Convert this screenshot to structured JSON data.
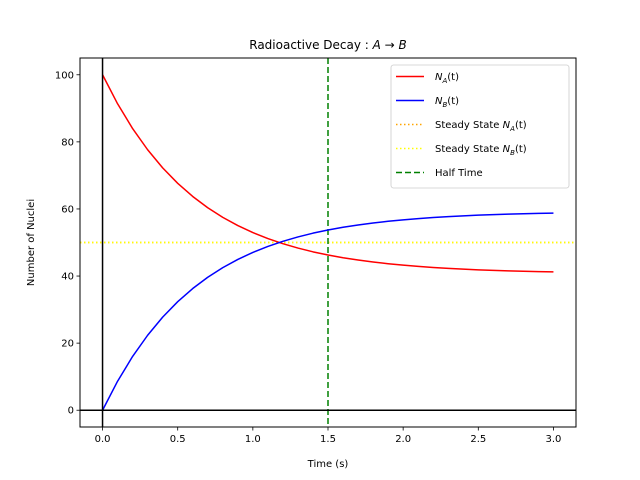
{
  "chart_data": {
    "type": "line",
    "title": "Radioactive Decay : A → B",
    "title_parts": {
      "prefix": "Radioactive Decay : ",
      "from": "A",
      "arrow": "→",
      "to": "B"
    },
    "xlabel": "Time (s)",
    "ylabel": "Number of Nuclei",
    "xlim": [
      -0.15,
      3.15
    ],
    "ylim": [
      -5,
      105
    ],
    "xticks": [
      0.0,
      0.5,
      1.0,
      1.5,
      2.0,
      2.5,
      3.0
    ],
    "xtick_labels": [
      "0.0",
      "0.5",
      "1.0",
      "1.5",
      "2.0",
      "2.5",
      "3.0"
    ],
    "yticks": [
      0,
      20,
      40,
      60,
      80,
      100
    ],
    "ytick_labels": [
      "0",
      "20",
      "40",
      "60",
      "80",
      "100"
    ],
    "grid": false,
    "legend_position": "top-right",
    "x": [
      0.0,
      0.1,
      0.2,
      0.3,
      0.4,
      0.5,
      0.6,
      0.7,
      0.8,
      0.9,
      1.0,
      1.1,
      1.2,
      1.3,
      1.4,
      1.5,
      1.6,
      1.7,
      1.8,
      1.9,
      2.0,
      2.1,
      2.2,
      2.3,
      2.4,
      2.5,
      2.6,
      2.7,
      2.8,
      2.9,
      3.0
    ],
    "series": [
      {
        "name": "N_A(t)",
        "legend": {
          "base": "N",
          "sub": "A",
          "suffix": "(t)"
        },
        "color": "#ff0000",
        "style": "solid",
        "values": [
          100.0,
          91.35,
          83.96,
          77.65,
          72.25,
          67.65,
          63.72,
          60.36,
          57.49,
          55.04,
          52.95,
          51.17,
          49.64,
          48.34,
          47.22,
          46.27,
          45.46,
          44.77,
          44.18,
          43.67,
          43.24,
          42.87,
          42.55,
          42.28,
          42.05,
          41.85,
          41.68,
          41.54,
          41.42,
          41.32,
          41.23
        ]
      },
      {
        "name": "N_B(t)",
        "legend": {
          "base": "N",
          "sub": "B",
          "suffix": "(t)"
        },
        "color": "#0000ff",
        "style": "solid",
        "values": [
          0.0,
          8.65,
          16.04,
          22.35,
          27.75,
          32.35,
          36.28,
          39.64,
          42.51,
          44.96,
          47.05,
          48.83,
          50.36,
          51.66,
          52.78,
          53.73,
          54.54,
          55.23,
          55.82,
          56.33,
          56.76,
          57.13,
          57.45,
          57.72,
          57.95,
          58.15,
          58.32,
          58.46,
          58.58,
          58.68,
          58.77
        ]
      }
    ],
    "reference_lines": [
      {
        "name": "Steady State N_A(t)",
        "legend": {
          "prefix": "Steady State ",
          "base": "N",
          "sub": "A",
          "suffix": "(t)"
        },
        "orientation": "horizontal",
        "value": 50,
        "color": "#ffa500",
        "style": "dotted"
      },
      {
        "name": "Steady State N_B(t)",
        "legend": {
          "prefix": "Steady State ",
          "base": "N",
          "sub": "B",
          "suffix": "(t)"
        },
        "orientation": "horizontal",
        "value": 50,
        "color": "#ffff00",
        "style": "dotted"
      },
      {
        "name": "Half Time",
        "legend": {
          "prefix": "Half Time",
          "base": "",
          "sub": "",
          "suffix": ""
        },
        "orientation": "vertical",
        "value": 1.5,
        "color": "#008000",
        "style": "dashed"
      }
    ],
    "axis_lines": {
      "x_zero": true,
      "y_zero": true,
      "color": "#000000"
    }
  }
}
